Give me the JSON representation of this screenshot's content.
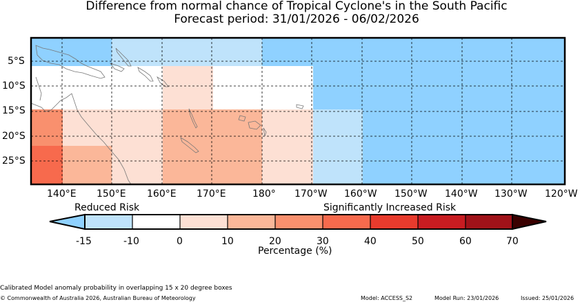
{
  "title_line1": "Difference from normal chance of Tropical Cyclone's in the South Pacific",
  "title_line2": "Forecast period: 31/01/2026 - 06/02/2026",
  "lat_labels": [
    "5°S",
    "10°S",
    "15°S",
    "20°S",
    "25°S"
  ],
  "lon_labels": [
    "140°E",
    "150°E",
    "160°E",
    "170°E",
    "180°",
    "170°W",
    "160°W",
    "150°W",
    "140°W",
    "130°W",
    "120°W"
  ],
  "colorbar": {
    "label_left": "Reduced Risk",
    "label_right": "Significantly Increased Risk",
    "ticks": [
      "-15",
      "-10",
      "0",
      "10",
      "20",
      "30",
      "40",
      "50",
      "60",
      "70"
    ],
    "axis_label": "Percentage (%)",
    "colors": {
      "below_min": "#8fd1ff",
      "m15_m10": "#bfe3fb",
      "m10_0": "#ffffff",
      "0_10": "#fde0d4",
      "10_20": "#fbb799",
      "20_30": "#f9906e",
      "30_40": "#f76a4d",
      "40_50": "#e83b2d",
      "50_60": "#c81c21",
      "60_70": "#a01219",
      "above_max": "#3a0000"
    }
  },
  "footer": {
    "note": "Calibrated Model anomaly probability in overlapping 15 x 20 degree boxes",
    "copyright": "© Commonwealth of Australia 2026, Australian Bureau of Meteorology",
    "model": "Model: ACCESS_S2",
    "model_run": "Model Run: 23/01/2026",
    "issued": "Issued: 25/01/2026"
  }
}
